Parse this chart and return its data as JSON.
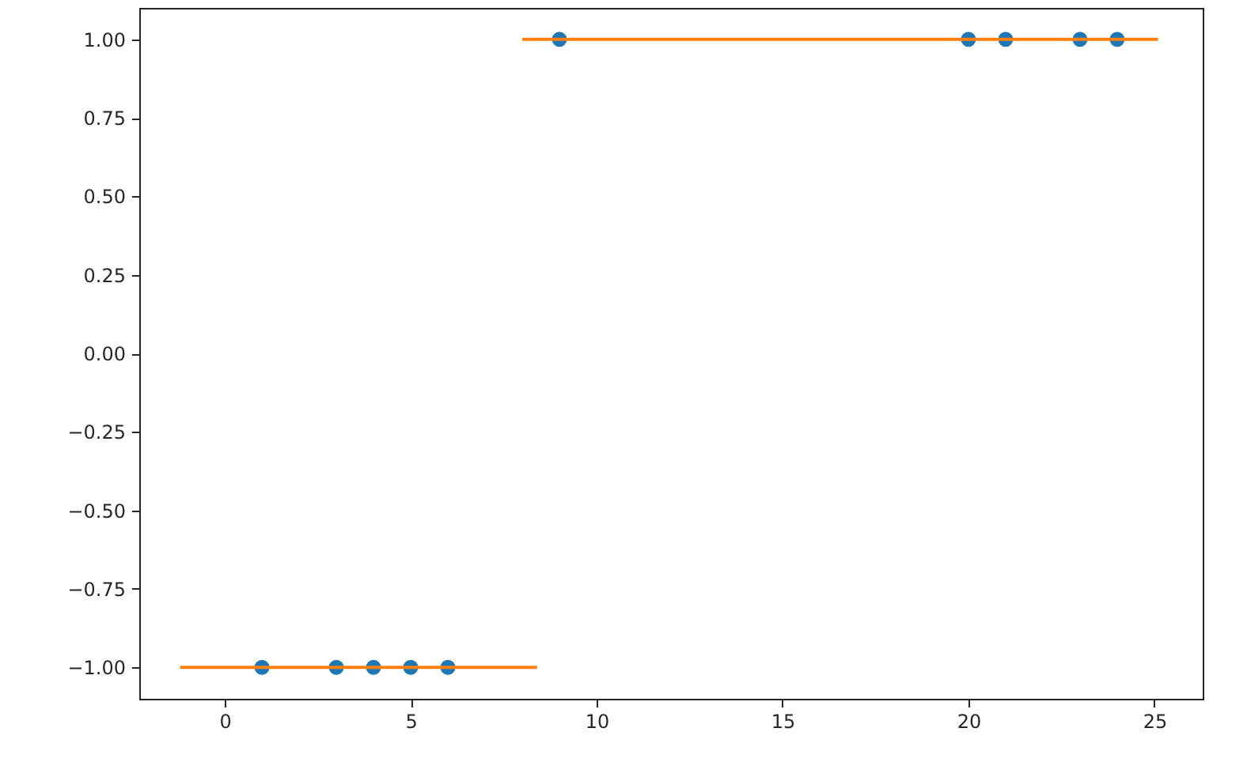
{
  "chart_data": {
    "type": "scatter",
    "xlim": [
      -2.3,
      26.3
    ],
    "ylim": [
      -1.1,
      1.1
    ],
    "xticks": [
      0,
      5,
      10,
      15,
      20,
      25
    ],
    "yticks": [
      {
        "value": -1,
        "label": "−1.00"
      },
      {
        "value": -0.75,
        "label": "−0.75"
      },
      {
        "value": -0.5,
        "label": "−0.50"
      },
      {
        "value": -0.25,
        "label": "−0.25"
      },
      {
        "value": 0,
        "label": "0.00"
      },
      {
        "value": 0.25,
        "label": "0.25"
      },
      {
        "value": 0.5,
        "label": "0.50"
      },
      {
        "value": 0.75,
        "label": "0.75"
      },
      {
        "value": 1,
        "label": "1.00"
      }
    ],
    "grid": false,
    "series": [
      {
        "marker": "circle",
        "color": "#1f77b4",
        "x": [
          1,
          3,
          4,
          5,
          6,
          9,
          20,
          21,
          23,
          24
        ],
        "values": [
          -1,
          -1,
          -1,
          -1,
          -1,
          1,
          1,
          1,
          1,
          1
        ]
      },
      {
        "type": "line",
        "color": "#ff7f0e",
        "x": [
          -1.2,
          8.4
        ],
        "values": [
          -1,
          -1
        ]
      },
      {
        "type": "line",
        "color": "#ff7f0e",
        "x": [
          8.0,
          25.1
        ],
        "values": [
          1,
          1
        ]
      }
    ]
  }
}
